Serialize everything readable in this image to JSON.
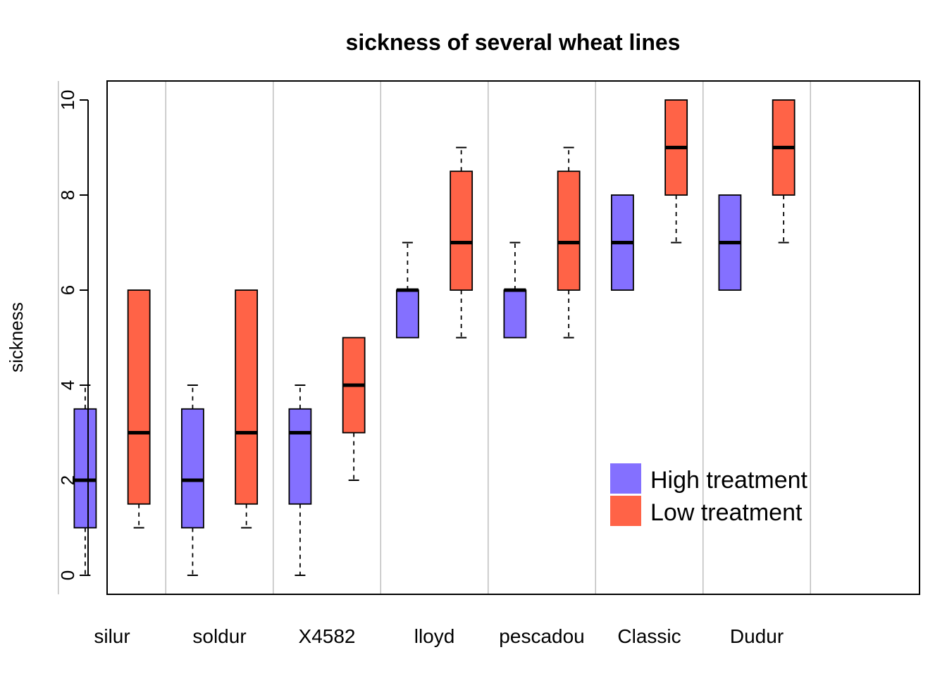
{
  "chart_data": {
    "type": "boxplot",
    "title": "sickness of several wheat lines",
    "xlabel": "",
    "ylabel": "sickness",
    "ylim": [
      -0.4,
      10.4
    ],
    "yticks": [
      "0",
      "2",
      "4",
      "6",
      "8",
      "10"
    ],
    "ytick_values": [
      0,
      2,
      4,
      6,
      8,
      10
    ],
    "categories": [
      "silur",
      "soldur",
      "X4582",
      "lloyd",
      "pescadou",
      "Classic",
      "Dudur"
    ],
    "grid": "vertical separators",
    "legend_position": "bottom-right",
    "series": [
      {
        "name": "High treatment",
        "color": "#8470FF",
        "boxes": [
          {
            "min": 0,
            "q1": 1,
            "median": 2,
            "q3": 3.5,
            "max": 4
          },
          {
            "min": 0,
            "q1": 1,
            "median": 2,
            "q3": 3.5,
            "max": 4
          },
          {
            "min": 0,
            "q1": 1.5,
            "median": 3,
            "q3": 3.5,
            "max": 4
          },
          {
            "min": 5,
            "q1": 5,
            "median": 6,
            "q3": 6,
            "max": 7
          },
          {
            "min": 5,
            "q1": 5,
            "median": 6,
            "q3": 6,
            "max": 7
          },
          {
            "min": 6,
            "q1": 6,
            "median": 7,
            "q3": 8,
            "max": 8
          },
          {
            "min": 6,
            "q1": 6,
            "median": 7,
            "q3": 8,
            "max": 8
          }
        ]
      },
      {
        "name": "Low treatment",
        "color": "#FF6347",
        "boxes": [
          {
            "min": 1,
            "q1": 1.5,
            "median": 3,
            "q3": 6,
            "max": 6
          },
          {
            "min": 1,
            "q1": 1.5,
            "median": 3,
            "q3": 6,
            "max": 6
          },
          {
            "min": 2,
            "q1": 3,
            "median": 4,
            "q3": 5,
            "max": 5
          },
          {
            "min": 5,
            "q1": 6,
            "median": 7,
            "q3": 8.5,
            "max": 9
          },
          {
            "min": 5,
            "q1": 6,
            "median": 7,
            "q3": 8.5,
            "max": 9
          },
          {
            "min": 7,
            "q1": 8,
            "median": 9,
            "q3": 10,
            "max": 10
          },
          {
            "min": 7,
            "q1": 8,
            "median": 9,
            "q3": 10,
            "max": 10
          }
        ]
      }
    ]
  }
}
